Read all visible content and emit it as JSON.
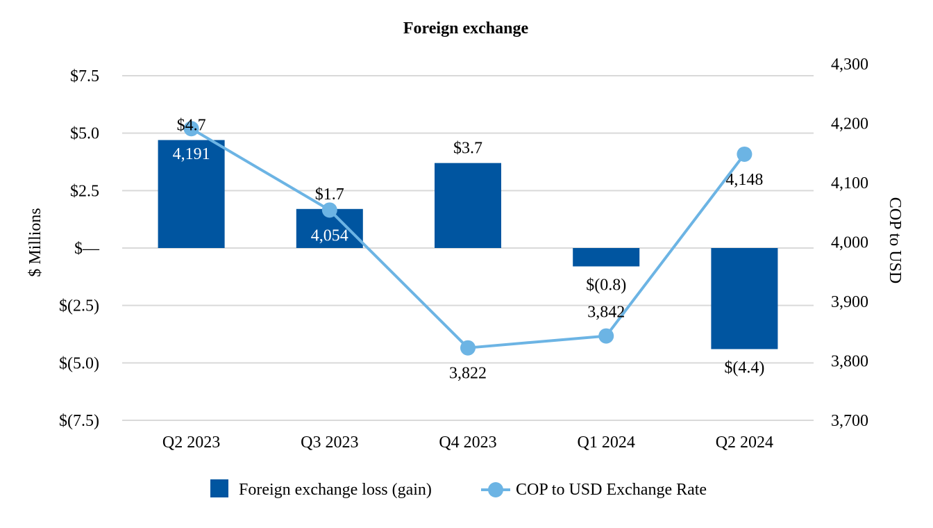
{
  "chart_data": {
    "type": "bar+line",
    "title": "Foreign exchange",
    "categories": [
      "Q2 2023",
      "Q3 2023",
      "Q4 2023",
      "Q1 2024",
      "Q2 2024"
    ],
    "series": [
      {
        "name": "Foreign exchange loss (gain)",
        "kind": "bar",
        "axis": "left",
        "color": "#0055A0",
        "values": [
          4.7,
          1.7,
          3.7,
          -0.8,
          -4.4
        ],
        "labels": [
          "$4.7",
          "$1.7",
          "$3.7",
          "$(0.8)",
          "$(4.4)"
        ]
      },
      {
        "name": "COP to USD Exchange Rate",
        "kind": "line",
        "axis": "right",
        "color": "#6CB4E4",
        "values": [
          4191,
          4054,
          3822,
          3842,
          4148
        ],
        "labels": [
          "4,191",
          "4,054",
          "3,822",
          "3,842",
          "4,148"
        ]
      }
    ],
    "y_left": {
      "label": "$ Millions",
      "lim": [
        -7.5,
        7.5
      ],
      "ticks": [
        7.5,
        5.0,
        2.5,
        0,
        -2.5,
        -5.0,
        -7.5
      ],
      "tick_labels": [
        "$7.5",
        "$5.0",
        "$2.5",
        "$—",
        "$(2.5)",
        "$(5.0)",
        "$(7.5)"
      ]
    },
    "y_right": {
      "label": "COP to USD",
      "lim": [
        3700,
        4300
      ],
      "ticks": [
        4300,
        4200,
        4100,
        4000,
        3900,
        3800,
        3700
      ],
      "tick_labels": [
        "4,300",
        "4,200",
        "4,100",
        "4,000",
        "3,900",
        "3,800",
        "3,700"
      ]
    },
    "grid": true,
    "legend_position": "bottom-center"
  }
}
